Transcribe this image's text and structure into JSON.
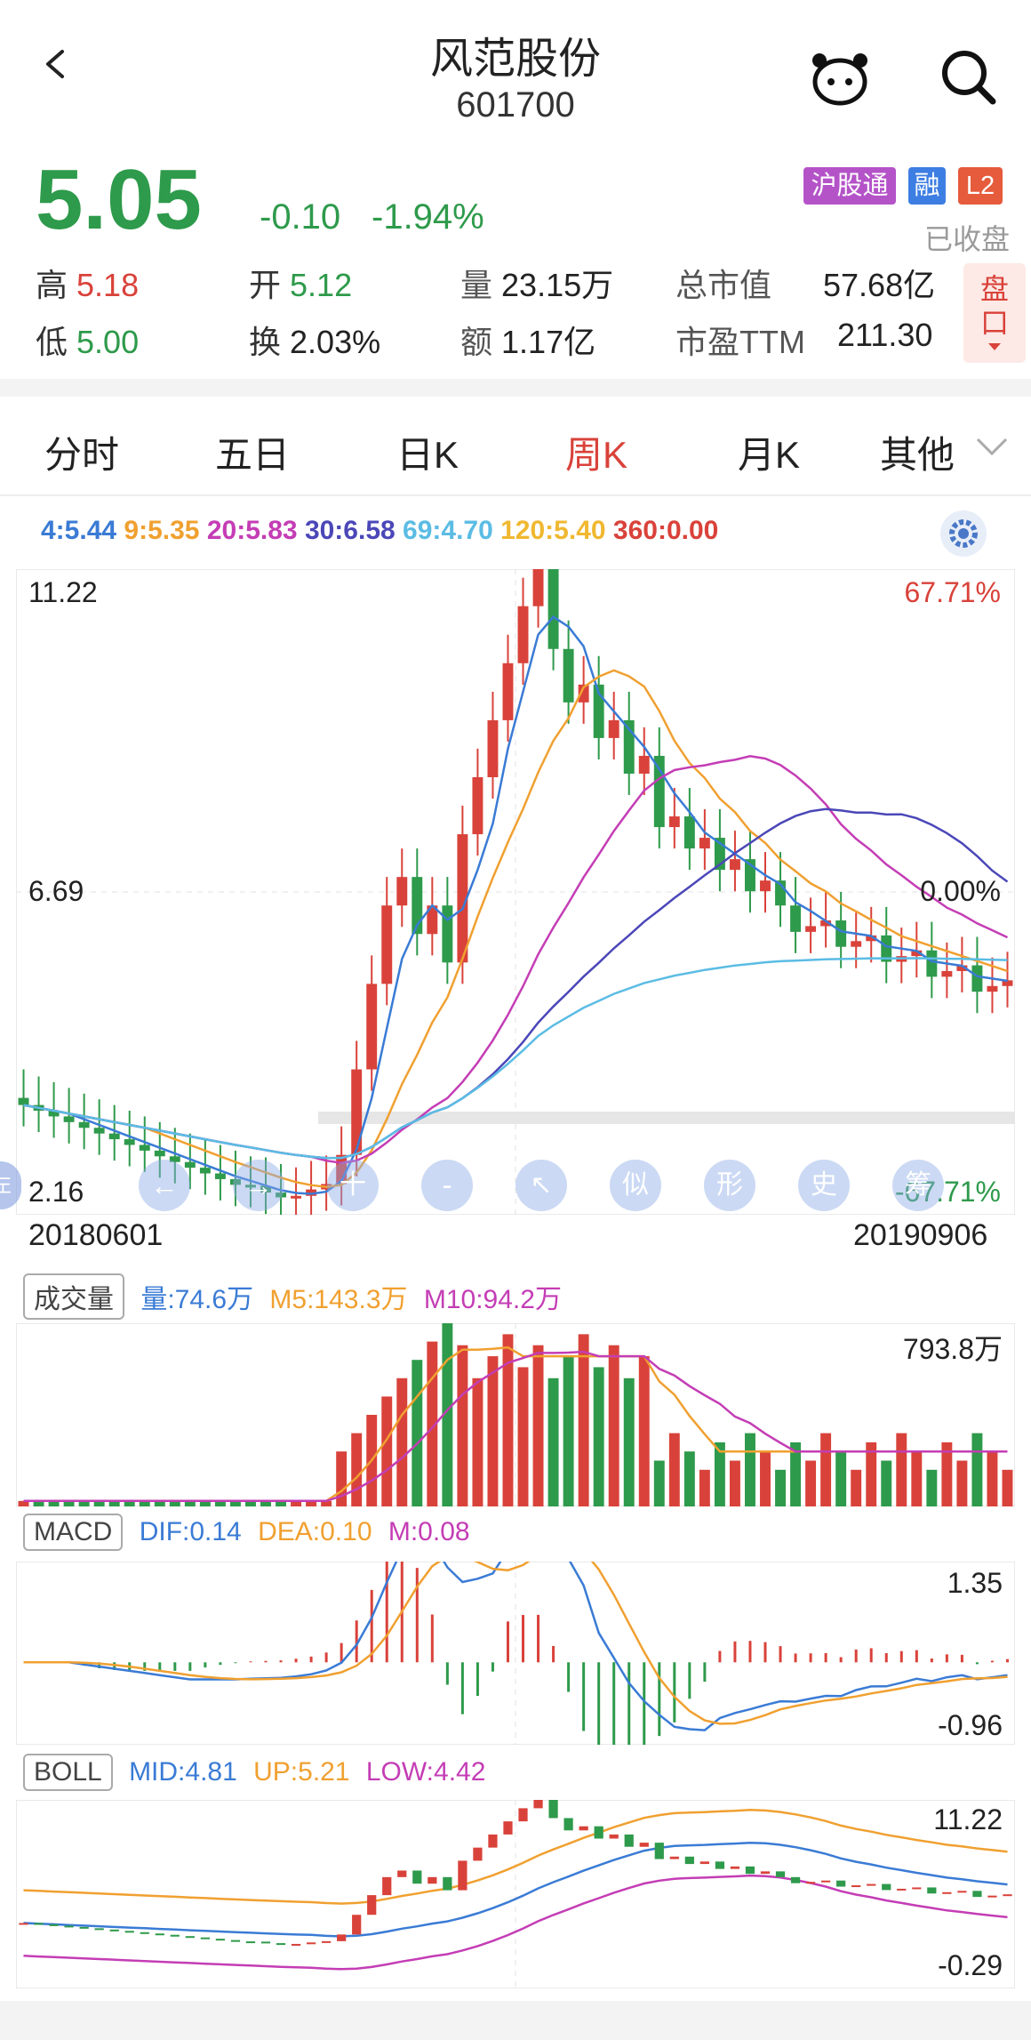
{
  "header": {
    "title": "风范股份",
    "code": "601700"
  },
  "quote": {
    "price": "5.05",
    "change": "-0.10",
    "change_pct": "-1.94%",
    "badges": {
      "hgt": "沪股通",
      "rong": "融",
      "l2": "L2"
    },
    "status": "已收盘",
    "stats": [
      {
        "label": "高",
        "value": "5.18"
      },
      {
        "label": "开",
        "value": "5.12"
      },
      {
        "label": "量",
        "value": "23.15万"
      },
      {
        "label": "总市值",
        "value": "57.68亿"
      },
      {
        "label": "低",
        "value": "5.00"
      },
      {
        "label": "换",
        "value": "2.03%"
      },
      {
        "label": "额",
        "value": "1.17亿"
      },
      {
        "label": "市盈TTM",
        "value": "211.30"
      }
    ],
    "pankou": "盘口"
  },
  "tabs": [
    {
      "label": "分时"
    },
    {
      "label": "五日"
    },
    {
      "label": "日K"
    },
    {
      "label": "周K",
      "active": true
    },
    {
      "label": "月K"
    },
    {
      "label": "其他"
    }
  ],
  "ma_legend": [
    {
      "text": "4:5.44",
      "color": "#3a7bd5"
    },
    {
      "text": "9:5.35",
      "color": "#f0a030"
    },
    {
      "text": "20:5.83",
      "color": "#c43db5"
    },
    {
      "text": "30:6.58",
      "color": "#4b47b8"
    },
    {
      "text": "69:4.70",
      "color": "#5bbce4"
    },
    {
      "text": "120:5.40",
      "color": "#f0b830"
    },
    {
      "text": "360:0.00",
      "color": "#d9423a"
    }
  ],
  "kline": {
    "max": "11.22",
    "mid": "6.69",
    "min": "2.16",
    "pct_top": "67.71%",
    "pct_mid": "0.00%",
    "pct_bottom": "-67.71%",
    "date_start": "20180601",
    "date_end": "20190906"
  },
  "toolbar": [
    "左",
    "←",
    "→",
    "十",
    "-",
    "↖",
    "似",
    "形",
    "史",
    "筹"
  ],
  "volume": {
    "tag": "成交量",
    "liang": "量:74.6万",
    "m5": "M5:143.3万",
    "m10": "M10:94.2万",
    "max": "793.8万"
  },
  "macd": {
    "tag": "MACD",
    "dif": "DIF:0.14",
    "dea": "DEA:0.10",
    "m": "M:0.08",
    "max": "1.35",
    "min": "-0.96"
  },
  "boll": {
    "tag": "BOLL",
    "mid": "MID:4.81",
    "up": "UP:5.21",
    "low": "LOW:4.42",
    "max": "11.22",
    "min": "-0.29"
  },
  "colors": {
    "up": "#d9423a",
    "down": "#2e9a4b",
    "ma4": "#3a7bd5",
    "ma9": "#f0a030",
    "ma20": "#c43db5",
    "ma30": "#4b47b8",
    "ma69": "#5bbce4"
  }
}
